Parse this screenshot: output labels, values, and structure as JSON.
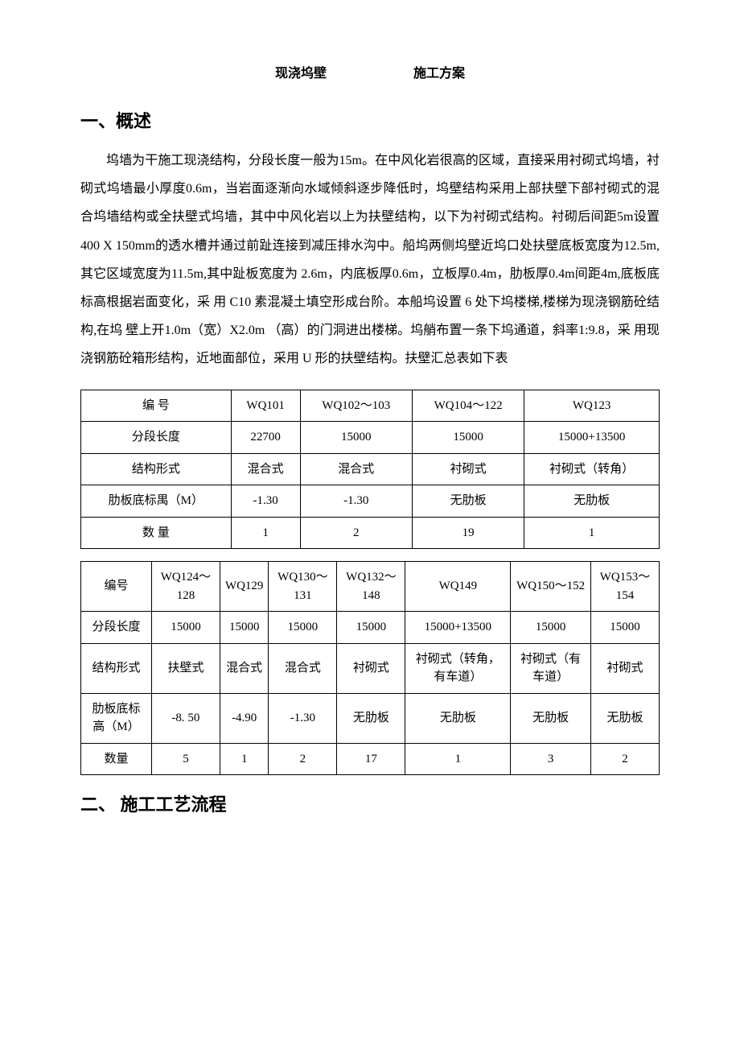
{
  "title": {
    "part1": "现浇坞壁",
    "part2": "施工方案"
  },
  "section1": {
    "heading": "一、概述",
    "paragraph": "坞墙为干施工现浇结构，分段长度一般为15m。在中风化岩很高的区域，直接采用衬砌式坞墙，衬砌式坞墙最小厚度0.6m，当岩面逐渐向水域倾斜逐步降低时，坞壁结构采用上部扶壁下部衬砌式的混合坞墙结构或全扶壁式坞墙，其中中风化岩以上为扶壁结构，以下为衬砌式结构。衬砌后间距5m设置400 X 150mm的透水槽并通过前趾连接到减压排水沟中。船坞两侧坞壁近坞口处扶壁底板宽度为12.5m,其它区域宽度为11.5m,其中趾板宽度为 2.6m，内底板厚0.6m，立板厚0.4m，肋板厚0.4m间距4m,底板底标高根据岩面变化，采 用 C10 素混凝土填空形成台阶。本船坞设置 6 处下坞楼梯,楼梯为现浇钢筋砼结构,在坞 壁上开1.0m（宽）X2.0m （高）的门洞进出楼梯。坞艄布置一条下坞通道，斜率1:9.8，采 用现浇钢筋砼箱形结构，近地面部位，采用 U 形的扶壁结构。扶壁汇总表如下表"
  },
  "table1": {
    "headers": {
      "col0": "编    号",
      "col1": "WQ101",
      "col2": "WQ102〜103",
      "col3": "WQ104〜122",
      "col4": "WQ123"
    },
    "rows": {
      "length": {
        "label": "分段长度",
        "c1": "22700",
        "c2": "15000",
        "c3": "15000",
        "c4": "15000+13500"
      },
      "structure": {
        "label": "结构形式",
        "c1": "混合式",
        "c2": "混合式",
        "c3": "衬砌式",
        "c4": "衬砌式（转角）"
      },
      "elevation": {
        "label": "肋板底标禺（M）",
        "c1": "-1.30",
        "c2": "-1.30",
        "c3": "无肋板",
        "c4": "无肋板"
      },
      "qty": {
        "label": "数 量",
        "c1": "1",
        "c2": "2",
        "c3": "19",
        "c4": "1"
      }
    }
  },
  "table2": {
    "headers": {
      "col0": "编号",
      "col1": "WQ124〜128",
      "col2": "WQ129",
      "col3": "WQ130〜131",
      "col4": "WQ132〜148",
      "col5": "WQ149",
      "col6": "WQ150〜152",
      "col7": "WQ153〜154"
    },
    "rows": {
      "length": {
        "label": "分段长度",
        "c1": "15000",
        "c2": "15000",
        "c3": "15000",
        "c4": "15000",
        "c5": "15000+13500",
        "c6": "15000",
        "c7": "15000"
      },
      "structure": {
        "label": "结构形式",
        "c1": "扶壁式",
        "c2": "混合式",
        "c3": "混合式",
        "c4": "衬砌式",
        "c5": "衬砌式（转角，有车道）",
        "c6": "衬砌式（有车道）",
        "c7": "衬砌式"
      },
      "elevation": {
        "label": "肋板底标高（M）",
        "c1": "-8. 50",
        "c2": "-4.90",
        "c3": "-1.30",
        "c4": "无肋板",
        "c5": "无肋板",
        "c6": "无肋板",
        "c7": "无肋板"
      },
      "qty": {
        "label": "数量",
        "c1": "5",
        "c2": "1",
        "c3": "2",
        "c4": "17",
        "c5": "1",
        "c6": "3",
        "c7": "2"
      }
    }
  },
  "section2": {
    "heading": "二、 施工工艺流程"
  },
  "styling": {
    "background_color": "#ffffff",
    "text_color": "#000000",
    "border_color": "#000000",
    "body_fontsize": 16,
    "heading_fontsize": 22,
    "table_fontsize": 15
  }
}
